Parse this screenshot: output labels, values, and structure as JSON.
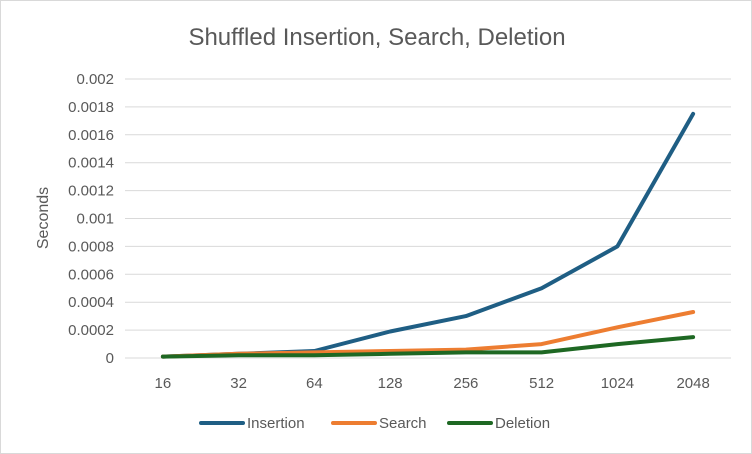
{
  "chart_data": {
    "type": "line",
    "title": "Shuffled Insertion, Search, Deletion",
    "xlabel": "",
    "ylabel": "Seconds",
    "categories": [
      "16",
      "32",
      "64",
      "128",
      "256",
      "512",
      "1024",
      "2048"
    ],
    "ylim": [
      0,
      0.002
    ],
    "yticks": [
      "0",
      "0.0002",
      "0.0004",
      "0.0006",
      "0.0008",
      "0.001",
      "0.0012",
      "0.0014",
      "0.0016",
      "0.0018",
      "0.002"
    ],
    "grid": true,
    "legend_position": "bottom",
    "series": [
      {
        "name": "Insertion",
        "color": "#1f5e84",
        "values": [
          1e-05,
          3e-05,
          5e-05,
          0.00019,
          0.0003,
          0.0005,
          0.0008,
          0.00175
        ]
      },
      {
        "name": "Search",
        "color": "#ed7d31",
        "values": [
          1e-05,
          3e-05,
          4e-05,
          5e-05,
          6e-05,
          0.0001,
          0.00022,
          0.00033
        ]
      },
      {
        "name": "Deletion",
        "color": "#1e6823",
        "values": [
          1e-05,
          2e-05,
          2e-05,
          3e-05,
          4e-05,
          4e-05,
          0.0001,
          0.00015
        ]
      }
    ]
  }
}
